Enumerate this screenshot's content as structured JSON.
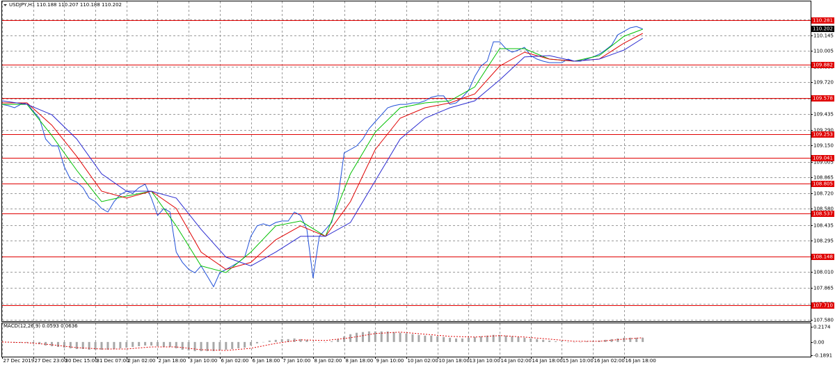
{
  "chart_data": [
    {
      "type": "line",
      "title": "USDJPY,H1 110.188 110.207 110.188 110.202",
      "xlim": [
        0,
        130
      ],
      "xticks": [
        {
          "value": 0,
          "label": "27 Dec 2019"
        },
        {
          "value": 5,
          "label": "27 Dec 23:00"
        },
        {
          "value": 10,
          "label": "30 Dec 15:00"
        },
        {
          "value": 15,
          "label": "31 Dec 07:00"
        },
        {
          "value": 20,
          "label": "2 Jan 02:00"
        },
        {
          "value": 25,
          "label": "2 Jan 18:00"
        },
        {
          "value": 30,
          "label": "3 Jan 10:00"
        },
        {
          "value": 35,
          "label": "6 Jan 02:00"
        },
        {
          "value": 40,
          "label": "6 Jan 18:00"
        },
        {
          "value": 45,
          "label": "7 Jan 10:00"
        },
        {
          "value": 50,
          "label": "8 Jan 02:00"
        },
        {
          "value": 55,
          "label": "8 Jan 18:00"
        },
        {
          "value": 60,
          "label": "9 Jan 10:00"
        },
        {
          "value": 65,
          "label": "10 Jan 02:00"
        },
        {
          "value": 70,
          "label": "10 Jan 18:00"
        },
        {
          "value": 75,
          "label": "13 Jan 10:00"
        },
        {
          "value": 80,
          "label": "14 Jan 02:00"
        },
        {
          "value": 85,
          "label": "14 Jan 18:00"
        },
        {
          "value": 90,
          "label": "15 Jan 10:00"
        },
        {
          "value": 95,
          "label": "16 Jan 02:00"
        },
        {
          "value": 100,
          "label": "16 Jan 18:00"
        }
      ],
      "ylim": [
        107.567,
        110.45
      ],
      "yticks": [
        {
          "value": 110.29,
          "label": "110.290"
        },
        110.145,
        110.005,
        {
          "value": 109.86,
          "label": "109.860"
        },
        {
          "value": 109.72,
          "label": "109.720"
        },
        109.575,
        109.435,
        {
          "value": 109.29,
          "label": "109.290"
        },
        {
          "value": 109.15,
          "label": "109.150"
        },
        109.005,
        108.865,
        {
          "value": 108.72,
          "label": "108.720"
        },
        {
          "value": 108.58,
          "label": "108.580"
        },
        108.435,
        108.295,
        {
          "value": 108.15,
          "label": "108.150"
        },
        {
          "value": 108.01,
          "label": "108.010"
        },
        107.865,
        107.725,
        {
          "value": 107.58,
          "label": "107.580"
        }
      ],
      "grid": true,
      "levels": [
        110.281,
        109.882,
        109.578,
        109.253,
        109.041,
        108.805,
        108.537,
        108.148,
        {
          "value": 107.71,
          "label": "107.710"
        }
      ],
      "level_color": "#e00000",
      "current": 110.202,
      "series": [
        {
          "color": "#1f4fd8",
          "values": [
            109.522,
            109.51,
            109.491,
            109.522,
            109.535,
            109.46,
            109.397,
            109.209,
            109.147,
            109.147,
            108.959,
            108.846,
            108.821,
            108.771,
            108.677,
            108.645,
            108.583,
            108.551,
            108.645,
            108.708,
            108.739,
            108.72,
            108.771,
            108.802,
            108.677,
            108.52,
            108.583,
            108.551,
            108.19,
            108.097,
            108.034,
            108.003,
            108.065,
            107.972,
            107.878,
            108.003,
            108.034,
            108.065,
            108.097,
            108.144,
            108.332,
            108.426,
            108.445,
            108.426,
            108.457,
            108.47,
            108.47,
            108.551,
            108.52,
            108.395,
            107.956,
            108.332,
            108.395,
            108.457,
            108.677,
            109.084,
            109.115,
            109.147,
            109.209,
            109.303,
            109.366,
            109.428,
            109.491,
            109.51,
            109.522,
            109.522,
            109.535,
            109.535,
            109.554,
            109.585,
            109.598,
            109.598,
            109.522,
            109.535,
            109.585,
            109.648,
            109.773,
            109.867,
            109.911,
            110.086,
            110.086,
            110.024,
            109.992,
            110.011,
            110.036,
            109.961,
            109.93,
            109.911,
            109.898,
            109.898,
            109.898,
            109.93,
            109.911,
            109.911,
            109.93,
            109.949,
            109.974,
            110.011,
            110.055,
            110.149,
            110.18,
            110.212,
            110.224,
            110.202
          ]
        },
        {
          "color": "#00c000",
          "x": [
            0,
            4,
            8,
            12,
            16,
            20,
            24,
            28,
            32,
            36,
            40,
            44,
            48,
            52,
            56,
            60,
            64,
            68,
            72,
            76,
            80,
            84,
            88,
            92,
            96,
            100,
            103
          ],
          "values": [
            109.522,
            109.522,
            109.241,
            108.927,
            108.645,
            108.695,
            108.739,
            108.426,
            108.065,
            108.006,
            108.19,
            108.426,
            108.47,
            108.332,
            108.896,
            109.272,
            109.491,
            109.535,
            109.554,
            109.679,
            110.024,
            110.024,
            109.93,
            109.911,
            109.961,
            110.136,
            110.199
          ]
        },
        {
          "color": "#e00000",
          "x": [
            0,
            4,
            8,
            12,
            16,
            20,
            24,
            28,
            32,
            36,
            40,
            44,
            48,
            52,
            56,
            60,
            64,
            68,
            72,
            76,
            80,
            84,
            88,
            92,
            96,
            100,
            103
          ],
          "values": [
            109.535,
            109.535,
            109.334,
            109.053,
            108.739,
            108.677,
            108.739,
            108.583,
            108.19,
            108.034,
            108.097,
            108.301,
            108.426,
            108.332,
            108.645,
            109.115,
            109.397,
            109.491,
            109.535,
            109.616,
            109.867,
            109.992,
            109.93,
            109.911,
            109.93,
            110.074,
            110.162
          ]
        },
        {
          "color": "#2a2ad0",
          "x": [
            0,
            4,
            8,
            12,
            16,
            20,
            24,
            28,
            32,
            36,
            40,
            44,
            48,
            52,
            56,
            60,
            64,
            68,
            72,
            76,
            80,
            84,
            88,
            92,
            96,
            100,
            103
          ],
          "values": [
            109.554,
            109.522,
            109.428,
            109.209,
            108.896,
            108.739,
            108.739,
            108.677,
            108.395,
            108.144,
            108.065,
            108.19,
            108.332,
            108.332,
            108.457,
            108.833,
            109.209,
            109.397,
            109.491,
            109.554,
            109.742,
            109.949,
            109.961,
            109.911,
            109.93,
            110.011,
            110.118
          ]
        }
      ]
    },
    {
      "type": "bar",
      "title": "MACD(12,26,9) 0.0593 0.0636",
      "ylim": [
        -0.208,
        0.2647
      ],
      "yticks": [
        0.2174,
        {
          "value": 0,
          "label": "0.00"
        },
        -0.1891
      ],
      "series": [
        {
          "type": "bar",
          "color": "#a8a8a8",
          "values": [
            0.01,
            0.0,
            -0.01,
            -0.01,
            -0.01,
            -0.02,
            -0.03,
            -0.05,
            -0.06,
            -0.07,
            -0.08,
            -0.09,
            -0.1,
            -0.1,
            -0.11,
            -0.11,
            -0.11,
            -0.11,
            -0.1,
            -0.09,
            -0.08,
            -0.07,
            -0.06,
            -0.05,
            -0.05,
            -0.06,
            -0.07,
            -0.07,
            -0.09,
            -0.11,
            -0.12,
            -0.13,
            -0.13,
            -0.13,
            -0.13,
            -0.12,
            -0.11,
            -0.1,
            -0.09,
            -0.08,
            -0.05,
            -0.02,
            0.0,
            0.02,
            0.03,
            0.04,
            0.04,
            0.05,
            0.04,
            0.03,
            0.0,
            0.0,
            0.0,
            0.01,
            0.04,
            0.08,
            0.11,
            0.13,
            0.14,
            0.15,
            0.15,
            0.15,
            0.15,
            0.14,
            0.13,
            0.12,
            0.11,
            0.1,
            0.09,
            0.09,
            0.08,
            0.07,
            0.06,
            0.05,
            0.05,
            0.06,
            0.07,
            0.08,
            0.09,
            0.1,
            0.1,
            0.09,
            0.08,
            0.07,
            0.06,
            0.05,
            0.04,
            0.03,
            0.02,
            0.01,
            0.01,
            0.0,
            0.0,
            0.0,
            0.01,
            0.01,
            0.02,
            0.03,
            0.04,
            0.05,
            0.06,
            0.06,
            0.06,
            0.06
          ]
        },
        {
          "type": "line",
          "style": "dotted",
          "color": "#e00000",
          "x": [
            0,
            4,
            8,
            12,
            16,
            20,
            24,
            28,
            32,
            36,
            40,
            44,
            48,
            52,
            56,
            60,
            64,
            68,
            72,
            76,
            80,
            84,
            88,
            92,
            96,
            100,
            103
          ],
          "values": [
            0.0,
            -0.01,
            -0.04,
            -0.08,
            -0.1,
            -0.1,
            -0.07,
            -0.07,
            -0.11,
            -0.12,
            -0.09,
            -0.02,
            0.03,
            0.02,
            0.06,
            0.12,
            0.14,
            0.11,
            0.08,
            0.07,
            0.09,
            0.07,
            0.04,
            0.01,
            0.01,
            0.04,
            0.06
          ]
        }
      ]
    }
  ]
}
